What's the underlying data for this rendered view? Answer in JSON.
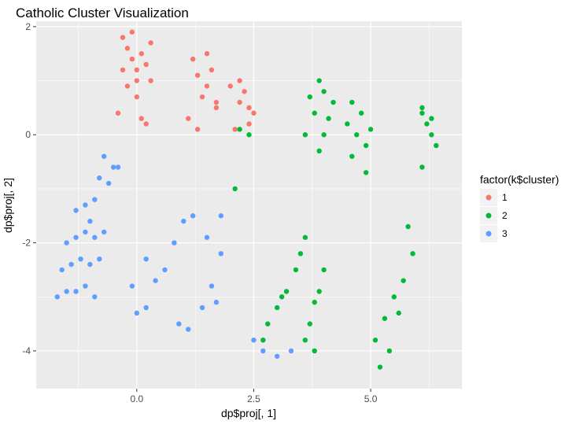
{
  "chart_data": {
    "type": "scatter",
    "title": "Catholic Cluster Visualization",
    "xlabel": "dp$proj[, 1]",
    "ylabel": "dp$proj[, 2]",
    "xlim": [
      -2.15,
      6.95
    ],
    "ylim": [
      -4.7,
      2.1
    ],
    "x_ticks": [
      0.0,
      2.5,
      5.0
    ],
    "x_tick_labels": [
      "0.0",
      "2.5",
      "5.0"
    ],
    "y_ticks": [
      2,
      0,
      -2,
      -4
    ],
    "y_tick_labels": [
      "2",
      "0",
      "-2",
      "-4"
    ],
    "grid": true,
    "legend": {
      "title": "factor(k$cluster)",
      "placement": "right",
      "entries": [
        "1",
        "2",
        "3"
      ]
    },
    "colors": {
      "1": "#F8766D",
      "2": "#00BA38",
      "3": "#619CFF",
      "panel": "#EBEBEB",
      "grid": "#FFFFFF"
    },
    "series": [
      {
        "name": "1",
        "points": [
          [
            -0.3,
            1.8
          ],
          [
            -0.2,
            1.6
          ],
          [
            -0.1,
            1.4
          ],
          [
            0.0,
            1.2
          ],
          [
            0.1,
            1.5
          ],
          [
            0.2,
            1.3
          ],
          [
            0.3,
            1.0
          ],
          [
            -0.2,
            0.9
          ],
          [
            0.0,
            0.7
          ],
          [
            0.1,
            0.3
          ],
          [
            -0.4,
            0.4
          ],
          [
            0.2,
            0.2
          ],
          [
            -0.1,
            1.9
          ],
          [
            0.3,
            1.7
          ],
          [
            0.0,
            1.0
          ],
          [
            -0.3,
            1.2
          ],
          [
            1.2,
            1.4
          ],
          [
            1.3,
            1.1
          ],
          [
            1.5,
            0.9
          ],
          [
            1.6,
            1.2
          ],
          [
            1.4,
            0.7
          ],
          [
            1.1,
            0.3
          ],
          [
            1.3,
            0.1
          ],
          [
            1.7,
            0.5
          ],
          [
            2.0,
            0.9
          ],
          [
            2.2,
            0.6
          ],
          [
            2.3,
            0.8
          ],
          [
            2.4,
            0.5
          ],
          [
            2.5,
            0.4
          ],
          [
            2.2,
            1.0
          ],
          [
            2.4,
            0.2
          ],
          [
            1.5,
            1.5
          ],
          [
            1.7,
            0.6
          ],
          [
            2.1,
            0.1
          ]
        ]
      },
      {
        "name": "2",
        "points": [
          [
            3.7,
            0.7
          ],
          [
            3.9,
            1.0
          ],
          [
            4.0,
            0.8
          ],
          [
            3.8,
            0.4
          ],
          [
            4.1,
            0.3
          ],
          [
            4.0,
            0.0
          ],
          [
            3.9,
            -0.3
          ],
          [
            3.6,
            0.0
          ],
          [
            4.2,
            0.6
          ],
          [
            4.6,
            0.6
          ],
          [
            4.8,
            0.4
          ],
          [
            4.7,
            0.0
          ],
          [
            4.9,
            -0.2
          ],
          [
            4.6,
            -0.4
          ],
          [
            4.5,
            0.2
          ],
          [
            4.9,
            -0.7
          ],
          [
            5.0,
            0.1
          ],
          [
            6.1,
            0.4
          ],
          [
            6.2,
            0.2
          ],
          [
            6.3,
            0.0
          ],
          [
            6.4,
            -0.2
          ],
          [
            6.1,
            0.5
          ],
          [
            6.3,
            0.3
          ],
          [
            6.1,
            -0.6
          ],
          [
            2.2,
            0.1
          ],
          [
            2.4,
            0.0
          ],
          [
            2.1,
            -1.0
          ],
          [
            2.8,
            -3.5
          ],
          [
            3.0,
            -3.2
          ],
          [
            3.2,
            -2.9
          ],
          [
            3.4,
            -2.5
          ],
          [
            3.5,
            -2.2
          ],
          [
            3.6,
            -1.9
          ],
          [
            2.7,
            -3.8
          ],
          [
            3.1,
            -3.0
          ],
          [
            3.6,
            -3.8
          ],
          [
            3.7,
            -3.5
          ],
          [
            3.8,
            -3.1
          ],
          [
            3.9,
            -2.9
          ],
          [
            3.8,
            -4.0
          ],
          [
            4.0,
            -2.5
          ],
          [
            5.2,
            -4.3
          ],
          [
            5.1,
            -3.8
          ],
          [
            5.3,
            -3.4
          ],
          [
            5.5,
            -3.0
          ],
          [
            5.7,
            -2.7
          ],
          [
            5.9,
            -2.2
          ],
          [
            5.4,
            -4.0
          ],
          [
            5.6,
            -3.3
          ],
          [
            5.8,
            -1.7
          ]
        ]
      },
      {
        "name": "3",
        "points": [
          [
            -1.7,
            -3.0
          ],
          [
            -1.5,
            -2.9
          ],
          [
            -1.3,
            -2.9
          ],
          [
            -1.1,
            -2.8
          ],
          [
            -0.9,
            -3.0
          ],
          [
            -1.6,
            -2.5
          ],
          [
            -1.4,
            -2.4
          ],
          [
            -1.2,
            -2.3
          ],
          [
            -1.0,
            -2.4
          ],
          [
            -0.8,
            -2.3
          ],
          [
            -1.5,
            -2.0
          ],
          [
            -1.3,
            -1.9
          ],
          [
            -1.1,
            -1.8
          ],
          [
            -0.9,
            -1.9
          ],
          [
            -0.7,
            -1.8
          ],
          [
            -1.3,
            -1.4
          ],
          [
            -1.1,
            -1.3
          ],
          [
            -0.9,
            -1.2
          ],
          [
            -1.0,
            -1.6
          ],
          [
            -0.8,
            -0.8
          ],
          [
            -0.6,
            -0.9
          ],
          [
            -0.5,
            -0.6
          ],
          [
            -0.7,
            -0.4
          ],
          [
            -0.4,
            -0.6
          ],
          [
            -0.1,
            -2.8
          ],
          [
            0.0,
            -3.3
          ],
          [
            0.2,
            -3.2
          ],
          [
            0.4,
            -2.7
          ],
          [
            0.6,
            -2.5
          ],
          [
            0.2,
            -2.3
          ],
          [
            0.8,
            -2.0
          ],
          [
            1.0,
            -1.6
          ],
          [
            1.2,
            -1.5
          ],
          [
            0.9,
            -3.5
          ],
          [
            1.1,
            -3.6
          ],
          [
            1.4,
            -3.2
          ],
          [
            1.6,
            -2.8
          ],
          [
            1.8,
            -2.2
          ],
          [
            1.5,
            -1.9
          ],
          [
            1.8,
            -1.5
          ],
          [
            1.7,
            -3.1
          ],
          [
            2.5,
            -3.8
          ],
          [
            2.7,
            -4.0
          ],
          [
            3.0,
            -4.1
          ],
          [
            3.3,
            -4.0
          ]
        ]
      }
    ]
  }
}
